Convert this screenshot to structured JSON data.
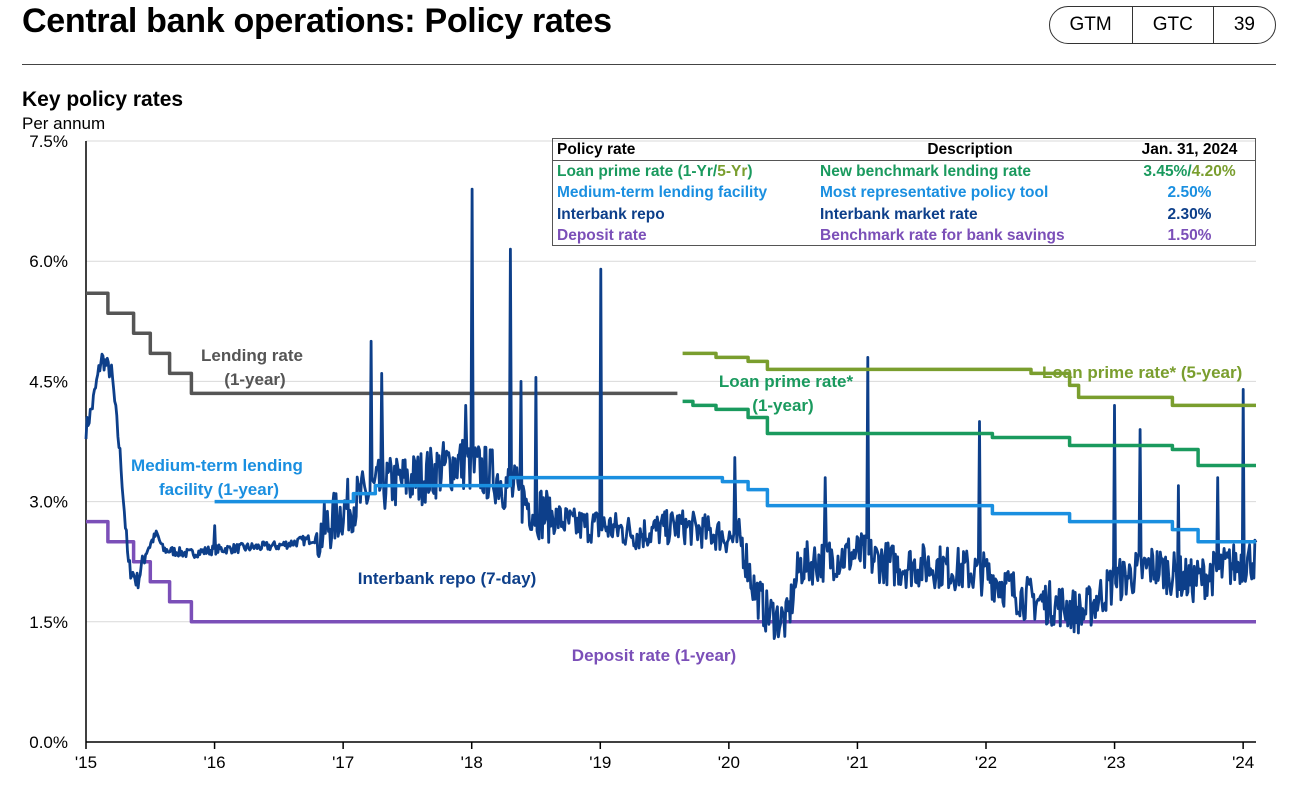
{
  "header": {
    "title": "Central bank operations: Policy rates",
    "tags": [
      "GTM",
      "GTC",
      "39"
    ]
  },
  "chart_title": "Key policy rates",
  "unit_label": "Per annum",
  "table": {
    "headers": [
      "Policy rate",
      "Description",
      "Jan. 31, 2024"
    ],
    "rows": [
      {
        "rate": "Loan prime rate (1-Yr/5-Yr)",
        "rate_a": "Loan prime rate (1-Yr/",
        "rate_b": "5-Yr",
        "rate_c": ")",
        "description": "New benchmark lending rate",
        "value": "3.45%/4.20%",
        "value_a": "3.45%/",
        "value_b": "4.20%",
        "color": "#1a9a5e",
        "color2": "#7a9e2e"
      },
      {
        "rate": "Medium-term lending facility",
        "description": "Most representative policy tool",
        "value": "2.50%",
        "color": "#1a8fe0"
      },
      {
        "rate": "Interbank repo",
        "description": "Interbank market rate",
        "value": "2.30%",
        "color": "#0d3f8a"
      },
      {
        "rate": "Deposit rate",
        "description": "Benchmark rate for bank savings",
        "value": "1.50%",
        "color": "#7b4fb8"
      }
    ]
  },
  "chart_data": {
    "type": "line",
    "title": "Key policy rates",
    "ylabel": "Per annum",
    "ylim": [
      0,
      7.5
    ],
    "xlim": [
      2015.0,
      2024.1
    ],
    "y_ticks": [
      "0.0%",
      "1.5%",
      "3.0%",
      "4.5%",
      "6.0%",
      "7.5%"
    ],
    "y_tick_values": [
      0,
      1.5,
      3.0,
      4.5,
      6.0,
      7.5
    ],
    "x_ticks": [
      "'15",
      "'16",
      "'17",
      "'18",
      "'19",
      "'20",
      "'21",
      "'22",
      "'23",
      "'24"
    ],
    "x_tick_values": [
      2015,
      2016,
      2017,
      2018,
      2019,
      2020,
      2021,
      2022,
      2023,
      2024
    ],
    "grid": "horizontal",
    "series": [
      {
        "name": "Lending rate (1-year)",
        "label": [
          "Lending rate",
          "(1-year)"
        ],
        "color": "#555555",
        "step": true,
        "points": [
          [
            2015.0,
            5.6
          ],
          [
            2015.17,
            5.35
          ],
          [
            2015.37,
            5.1
          ],
          [
            2015.5,
            4.85
          ],
          [
            2015.65,
            4.6
          ],
          [
            2015.82,
            4.35
          ],
          [
            2019.6,
            4.35
          ]
        ]
      },
      {
        "name": "Loan prime rate* (5-year)",
        "label": [
          "Loan prime rate*  (5-year)"
        ],
        "color": "#7a9e2e",
        "step": true,
        "points": [
          [
            2019.64,
            4.85
          ],
          [
            2019.72,
            4.85
          ],
          [
            2019.9,
            4.8
          ],
          [
            2020.15,
            4.75
          ],
          [
            2020.3,
            4.65
          ],
          [
            2022.05,
            4.65
          ],
          [
            2022.35,
            4.6
          ],
          [
            2022.65,
            4.45
          ],
          [
            2022.72,
            4.3
          ],
          [
            2023.45,
            4.2
          ],
          [
            2024.1,
            4.2
          ]
        ]
      },
      {
        "name": "Loan prime rate* (1-year)",
        "label": [
          "Loan prime rate*",
          "(1-year)"
        ],
        "color": "#1a9a5e",
        "step": true,
        "points": [
          [
            2019.64,
            4.25
          ],
          [
            2019.72,
            4.2
          ],
          [
            2019.9,
            4.15
          ],
          [
            2020.15,
            4.05
          ],
          [
            2020.3,
            3.85
          ],
          [
            2021.95,
            3.85
          ],
          [
            2022.05,
            3.8
          ],
          [
            2022.65,
            3.7
          ],
          [
            2023.45,
            3.65
          ],
          [
            2023.65,
            3.45
          ],
          [
            2024.1,
            3.45
          ]
        ]
      },
      {
        "name": "Medium-term lending facility (1-year)",
        "label": [
          "Medium-term lending",
          "facility (1-year)"
        ],
        "color": "#1a8fe0",
        "step": true,
        "points": [
          [
            2016.0,
            3.0
          ],
          [
            2017.08,
            3.1
          ],
          [
            2017.25,
            3.2
          ],
          [
            2018.3,
            3.3
          ],
          [
            2019.95,
            3.25
          ],
          [
            2020.15,
            3.15
          ],
          [
            2020.3,
            2.95
          ],
          [
            2022.05,
            2.85
          ],
          [
            2022.65,
            2.75
          ],
          [
            2023.45,
            2.65
          ],
          [
            2023.65,
            2.5
          ],
          [
            2024.1,
            2.5
          ]
        ]
      },
      {
        "name": "Interbank repo (7-day)",
        "label": [
          "Interbank repo (7-day)"
        ],
        "color": "#0d3f8a",
        "step": false,
        "anchors": [
          [
            2015.0,
            3.9
          ],
          [
            2015.05,
            4.2
          ],
          [
            2015.12,
            4.8
          ],
          [
            2015.2,
            4.6
          ],
          [
            2015.27,
            3.5
          ],
          [
            2015.33,
            2.2
          ],
          [
            2015.4,
            2.0
          ],
          [
            2015.47,
            2.4
          ],
          [
            2015.55,
            2.6
          ],
          [
            2015.6,
            2.4
          ],
          [
            2015.8,
            2.35
          ],
          [
            2016.0,
            2.4
          ],
          [
            2016.5,
            2.45
          ],
          [
            2016.8,
            2.55
          ],
          [
            2017.0,
            2.9
          ],
          [
            2017.3,
            3.2
          ],
          [
            2017.6,
            3.3
          ],
          [
            2017.9,
            3.5
          ],
          [
            2018.2,
            3.3
          ],
          [
            2018.5,
            2.9
          ],
          [
            2018.8,
            2.7
          ],
          [
            2019.0,
            2.7
          ],
          [
            2019.3,
            2.6
          ],
          [
            2019.6,
            2.7
          ],
          [
            2019.9,
            2.6
          ],
          [
            2020.1,
            2.5
          ],
          [
            2020.2,
            1.9
          ],
          [
            2020.3,
            1.6
          ],
          [
            2020.45,
            1.5
          ],
          [
            2020.55,
            2.2
          ],
          [
            2020.8,
            2.3
          ],
          [
            2021.0,
            2.35
          ],
          [
            2021.3,
            2.2
          ],
          [
            2021.6,
            2.2
          ],
          [
            2022.0,
            2.1
          ],
          [
            2022.3,
            1.8
          ],
          [
            2022.6,
            1.7
          ],
          [
            2022.75,
            1.6
          ],
          [
            2023.0,
            2.0
          ],
          [
            2023.3,
            2.2
          ],
          [
            2023.6,
            2.0
          ],
          [
            2023.9,
            2.2
          ],
          [
            2024.1,
            2.3
          ]
        ],
        "spikes": [
          [
            2016.0,
            2.7
          ],
          [
            2017.22,
            5.0
          ],
          [
            2017.3,
            4.6
          ],
          [
            2017.95,
            4.2
          ],
          [
            2018.0,
            6.9
          ],
          [
            2018.3,
            6.15
          ],
          [
            2018.38,
            4.5
          ],
          [
            2018.5,
            4.55
          ],
          [
            2019.0,
            5.9
          ],
          [
            2020.05,
            3.55
          ],
          [
            2020.75,
            3.3
          ],
          [
            2021.08,
            4.8
          ],
          [
            2021.95,
            4.0
          ],
          [
            2023.0,
            4.2
          ],
          [
            2023.2,
            3.9
          ],
          [
            2023.5,
            3.2
          ],
          [
            2023.8,
            3.3
          ],
          [
            2024.0,
            4.4
          ]
        ]
      },
      {
        "name": "Deposit rate (1-year)",
        "label": [
          "Deposit rate (1-year)"
        ],
        "color": "#7b4fb8",
        "step": true,
        "points": [
          [
            2015.0,
            2.75
          ],
          [
            2015.17,
            2.5
          ],
          [
            2015.37,
            2.25
          ],
          [
            2015.5,
            2.0
          ],
          [
            2015.65,
            1.75
          ],
          [
            2015.82,
            1.5
          ],
          [
            2024.1,
            1.5
          ]
        ]
      }
    ]
  }
}
